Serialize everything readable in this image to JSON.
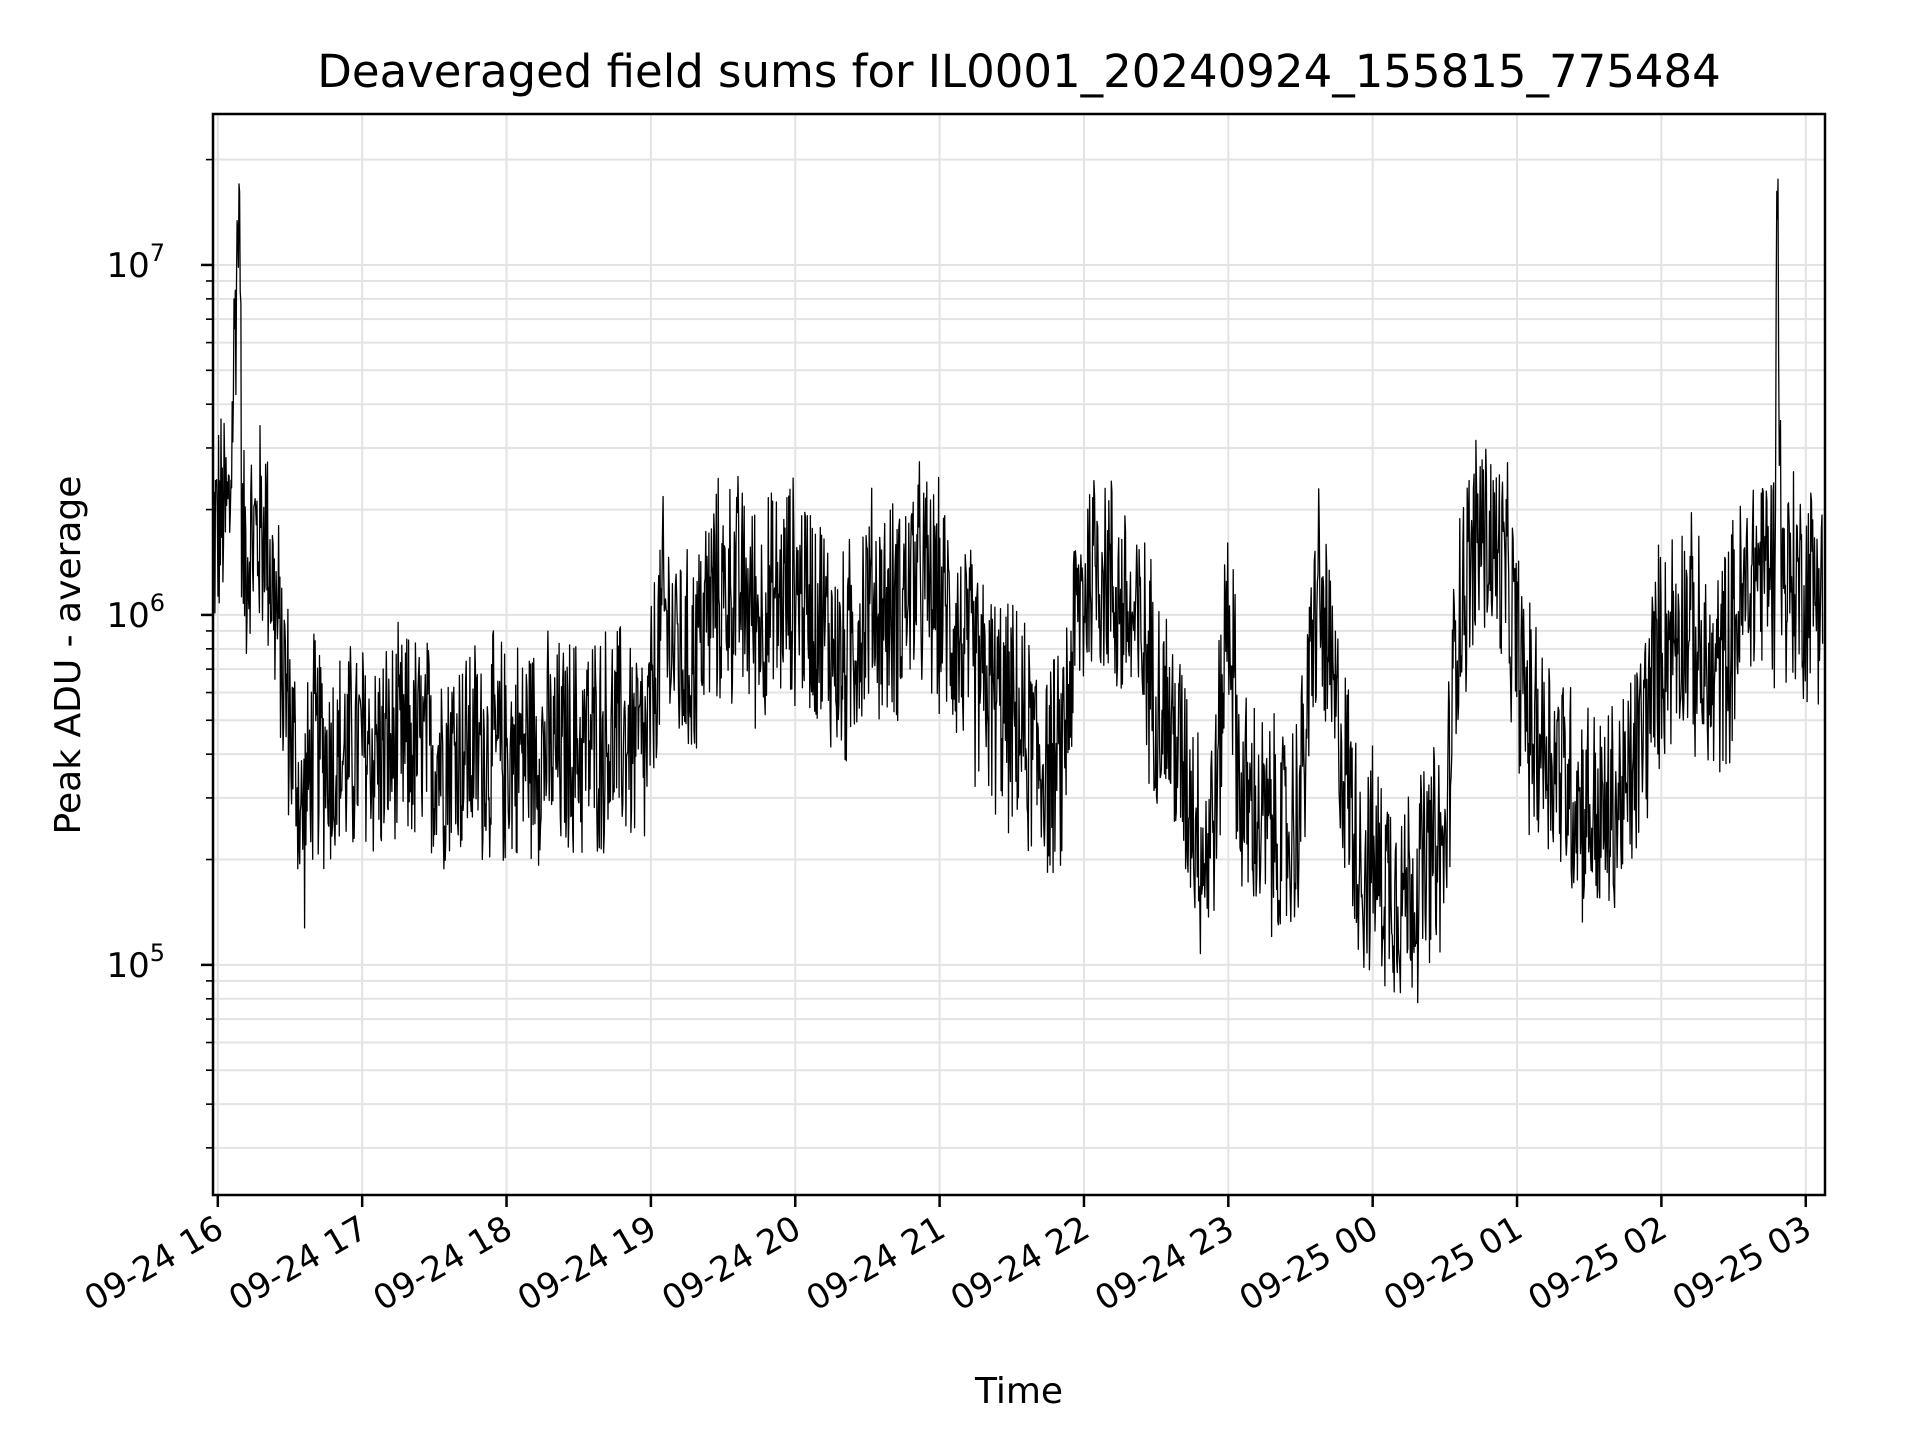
{
  "chart_data": {
    "type": "line",
    "title": "Deaveraged field sums for IL0001_20240924_155815_775484",
    "xlabel": "Time",
    "ylabel": "Peak ADU - average",
    "yscale": "log",
    "grid": true,
    "grid_minor": true,
    "legend": "none",
    "line_color": "#000000",
    "xlim": [
      "2024-09-24 15:58",
      "2024-09-25 03:08"
    ],
    "ylim": [
      22000,
      27000000
    ],
    "x_ticks": [
      {
        "t": "2024-09-24 16:00",
        "label": "09-24 16"
      },
      {
        "t": "2024-09-24 17:00",
        "label": "09-24 17"
      },
      {
        "t": "2024-09-24 18:00",
        "label": "09-24 18"
      },
      {
        "t": "2024-09-24 19:00",
        "label": "09-24 19"
      },
      {
        "t": "2024-09-24 20:00",
        "label": "09-24 20"
      },
      {
        "t": "2024-09-24 21:00",
        "label": "09-24 21"
      },
      {
        "t": "2024-09-24 22:00",
        "label": "09-24 22"
      },
      {
        "t": "2024-09-24 23:00",
        "label": "09-24 23"
      },
      {
        "t": "2024-09-25 00:00",
        "label": "09-25 00"
      },
      {
        "t": "2024-09-25 01:00",
        "label": "09-25 01"
      },
      {
        "t": "2024-09-25 02:00",
        "label": "09-25 02"
      },
      {
        "t": "2024-09-25 03:00",
        "label": "09-25 03"
      }
    ],
    "y_ticks": [
      {
        "value": 100000,
        "base": "10",
        "exp": "5"
      },
      {
        "value": 1000000,
        "base": "10",
        "exp": "6"
      },
      {
        "value": 10000000,
        "base": "10",
        "exp": "7"
      }
    ],
    "series": [
      {
        "points": [
          [
            "2024-09-24 15:58",
            1700000
          ],
          [
            "2024-09-24 16:05",
            2000000
          ],
          [
            "2024-09-24 16:09",
            19000000
          ],
          [
            "2024-09-24 16:10",
            1500000
          ],
          [
            "2024-09-24 16:20",
            1800000
          ],
          [
            "2024-09-24 16:25",
            900000
          ],
          [
            "2024-09-24 16:30",
            500000
          ],
          [
            "2024-09-24 16:35",
            250000
          ],
          [
            "2024-09-24 16:40",
            420000
          ],
          [
            "2024-09-24 16:50",
            380000
          ],
          [
            "2024-09-24 17:00",
            420000
          ],
          [
            "2024-09-24 17:10",
            400000
          ],
          [
            "2024-09-24 17:20",
            430000
          ],
          [
            "2024-09-24 17:30",
            400000
          ],
          [
            "2024-09-24 17:40",
            420000
          ],
          [
            "2024-09-24 17:50",
            410000
          ],
          [
            "2024-09-24 18:00",
            400000
          ],
          [
            "2024-09-24 18:10",
            430000
          ],
          [
            "2024-09-24 18:20",
            400000
          ],
          [
            "2024-09-24 18:30",
            420000
          ],
          [
            "2024-09-24 18:40",
            440000
          ],
          [
            "2024-09-24 18:50",
            450000
          ],
          [
            "2024-09-24 18:58",
            400000
          ],
          [
            "2024-09-24 19:05",
            1000000
          ],
          [
            "2024-09-24 19:15",
            700000
          ],
          [
            "2024-09-24 19:25",
            1100000
          ],
          [
            "2024-09-24 19:35",
            1200000
          ],
          [
            "2024-09-24 19:45",
            1000000
          ],
          [
            "2024-09-24 20:00",
            1200000
          ],
          [
            "2024-09-24 20:10",
            1000000
          ],
          [
            "2024-09-24 20:20",
            700000
          ],
          [
            "2024-09-24 20:30",
            1100000
          ],
          [
            "2024-09-24 20:40",
            1000000
          ],
          [
            "2024-09-24 20:50",
            1300000
          ],
          [
            "2024-09-24 21:00",
            1100000
          ],
          [
            "2024-09-24 21:10",
            800000
          ],
          [
            "2024-09-24 21:20",
            600000
          ],
          [
            "2024-09-24 21:30",
            500000
          ],
          [
            "2024-09-24 21:40",
            400000
          ],
          [
            "2024-09-24 21:50",
            350000
          ],
          [
            "2024-09-24 21:57",
            1000000
          ],
          [
            "2024-09-24 22:05",
            1500000
          ],
          [
            "2024-09-24 22:15",
            1100000
          ],
          [
            "2024-09-24 22:25",
            800000
          ],
          [
            "2024-09-24 22:35",
            500000
          ],
          [
            "2024-09-24 22:45",
            300000
          ],
          [
            "2024-09-24 22:50",
            200000
          ],
          [
            "2024-09-24 22:55",
            300000
          ],
          [
            "2024-09-24 23:00",
            1200000
          ],
          [
            "2024-09-24 23:05",
            300000
          ],
          [
            "2024-09-24 23:15",
            250000
          ],
          [
            "2024-09-24 23:25",
            220000
          ],
          [
            "2024-09-24 23:30",
            300000
          ],
          [
            "2024-09-24 23:37",
            1200000
          ],
          [
            "2024-09-24 23:45",
            500000
          ],
          [
            "2024-09-24 23:55",
            200000
          ],
          [
            "2024-09-25 00:05",
            180000
          ],
          [
            "2024-09-25 00:15",
            160000
          ],
          [
            "2024-09-25 00:25",
            200000
          ],
          [
            "2024-09-25 00:30",
            200000
          ],
          [
            "2024-09-25 00:35",
            1000000
          ],
          [
            "2024-09-25 00:45",
            1800000
          ],
          [
            "2024-09-25 00:55",
            1300000
          ],
          [
            "2024-09-25 01:05",
            500000
          ],
          [
            "2024-09-25 01:15",
            400000
          ],
          [
            "2024-09-25 01:25",
            300000
          ],
          [
            "2024-09-25 01:35",
            250000
          ],
          [
            "2024-09-25 01:45",
            300000
          ],
          [
            "2024-09-25 01:50",
            400000
          ],
          [
            "2024-09-25 02:00",
            800000
          ],
          [
            "2024-09-25 02:10",
            1000000
          ],
          [
            "2024-09-25 02:20",
            600000
          ],
          [
            "2024-09-25 02:30",
            900000
          ],
          [
            "2024-09-25 02:40",
            1400000
          ],
          [
            "2024-09-25 02:47",
            1400000
          ],
          [
            "2024-09-25 02:48",
            18000000
          ],
          [
            "2024-09-25 02:50",
            1300000
          ],
          [
            "2024-09-25 03:00",
            1200000
          ],
          [
            "2024-09-25 03:07",
            1300000
          ]
        ],
        "noise_decades": 0.75
      }
    ]
  }
}
